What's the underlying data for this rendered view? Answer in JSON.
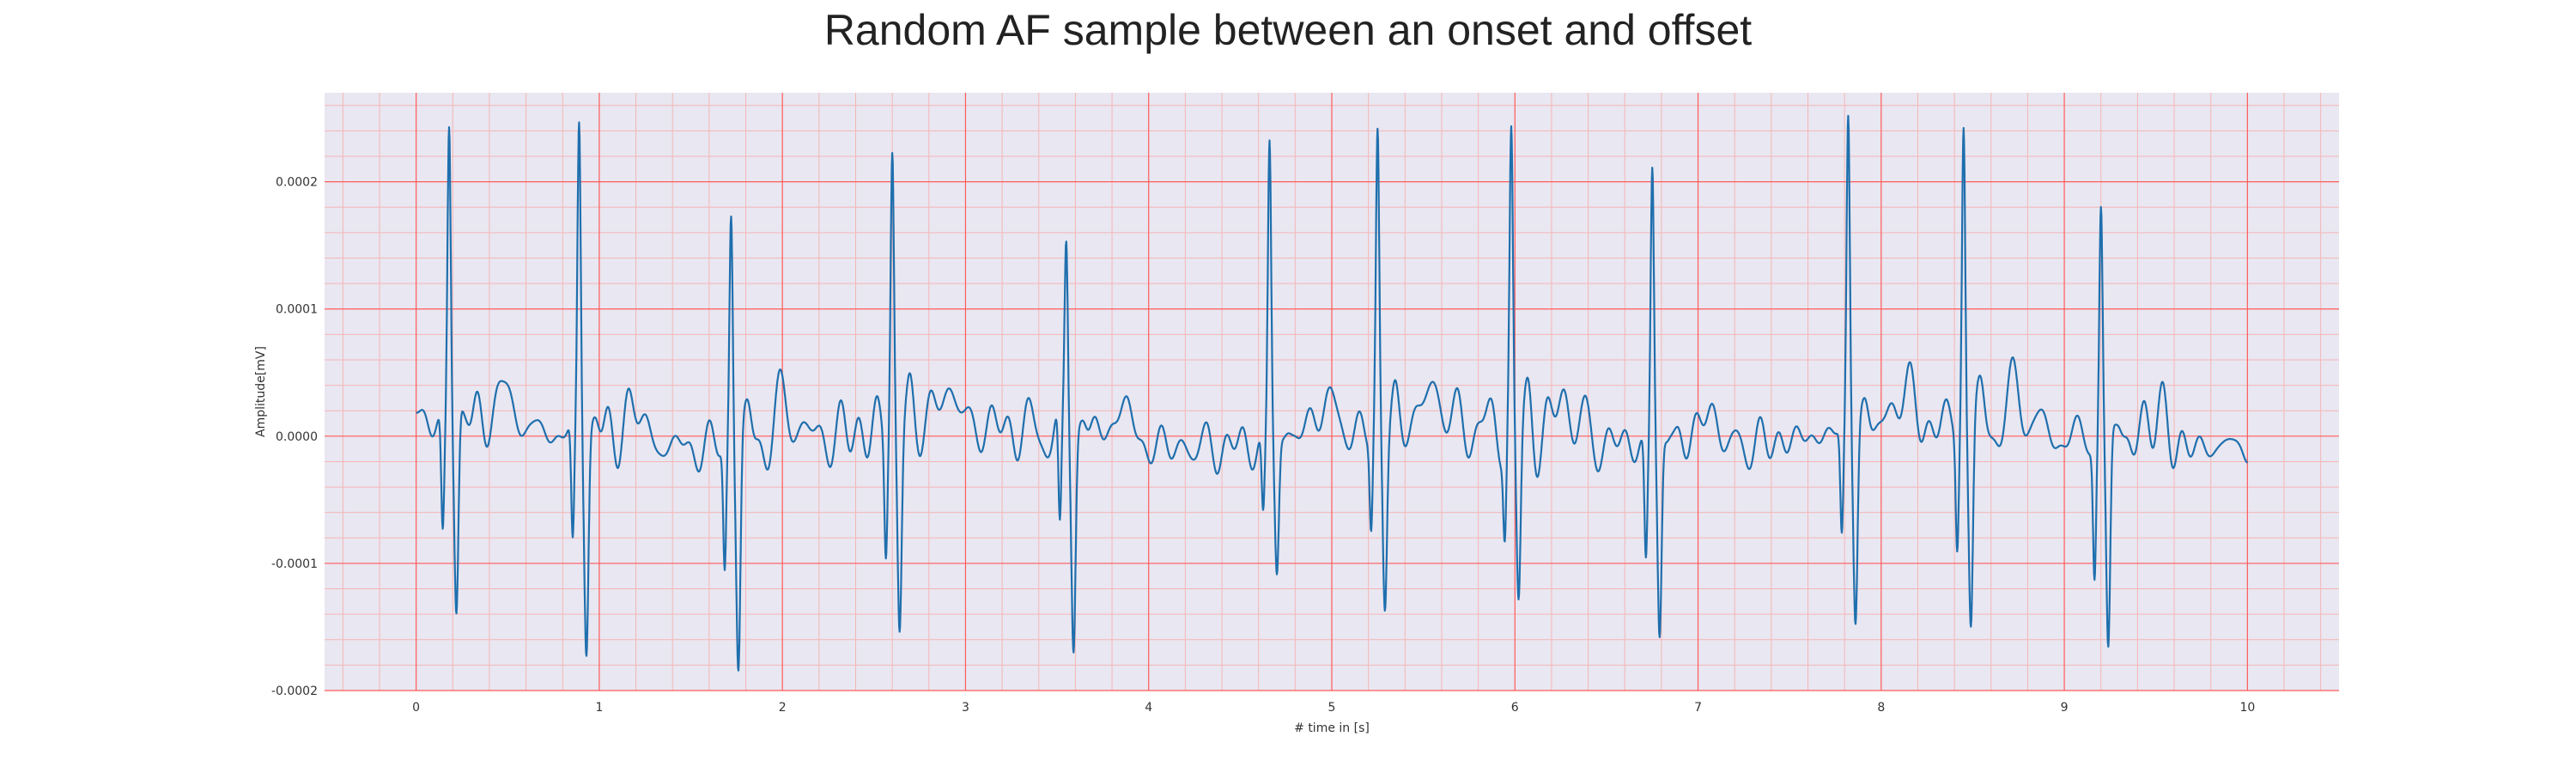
{
  "chart_data": {
    "type": "line",
    "title": "Random AF sample between an onset and offset",
    "xlabel": "# time in [s]",
    "ylabel": "Amplitude[mV]",
    "xlim": [
      -0.5,
      10.5
    ],
    "ylim": [
      -0.0002,
      0.00027
    ],
    "x_ticks": [
      0,
      1,
      2,
      3,
      4,
      5,
      6,
      7,
      8,
      9,
      10
    ],
    "x_tick_labels": [
      "0",
      "1",
      "2",
      "3",
      "4",
      "5",
      "6",
      "7",
      "8",
      "9",
      "10"
    ],
    "y_ticks": [
      -0.0002,
      -0.0001,
      0.0,
      0.0001,
      0.0002
    ],
    "y_tick_labels": [
      "-0.0002",
      "-0.0001",
      "0.0000",
      "0.0001",
      "0.0002"
    ],
    "grid": true,
    "minor_grid": true,
    "colors": {
      "line": "#1f6fad",
      "major_grid": "#ff5a5a",
      "minor_grid": "#f4b6b6",
      "plot_background": "#e9e7f1"
    },
    "series": [
      {
        "beats": [
          {
            "t": 0.18,
            "peak": 0.000245,
            "trough": -0.000162
          },
          {
            "t": 0.89,
            "peak": 0.00025,
            "trough": -0.000168
          },
          {
            "t": 1.72,
            "peak": 0.000192,
            "trough": -0.000176
          },
          {
            "t": 2.6,
            "peak": 0.000219,
            "trough": -0.000158
          },
          {
            "t": 3.55,
            "peak": 0.000155,
            "trough": -0.000166
          },
          {
            "t": 4.66,
            "peak": 0.000236,
            "trough": -0.000112
          },
          {
            "t": 5.25,
            "peak": 0.000226,
            "trough": -0.000132
          },
          {
            "t": 5.98,
            "peak": 0.000224,
            "trough": -0.00013
          },
          {
            "t": 6.75,
            "peak": 0.000224,
            "trough": -0.000166
          },
          {
            "t": 7.82,
            "peak": 0.000252,
            "trough": -0.00015
          },
          {
            "t": 8.45,
            "peak": 0.000245,
            "trough": -0.000158
          },
          {
            "t": 9.2,
            "peak": 0.000188,
            "trough": -0.00018
          }
        ],
        "t_start": 0.0,
        "t_end": 10.0,
        "start_value": 1e-05,
        "fibrillation_amplitude": 2.2e-05
      }
    ]
  }
}
